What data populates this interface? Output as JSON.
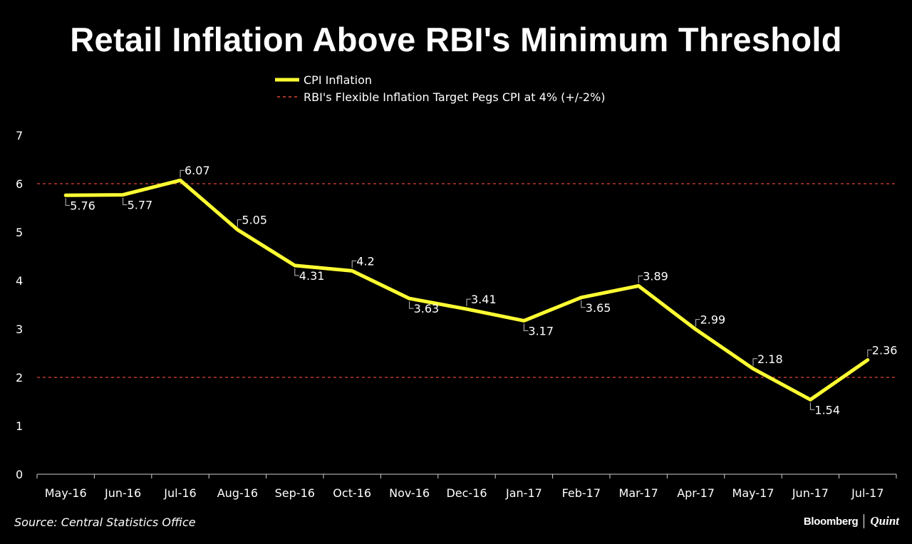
{
  "chart_data": {
    "type": "line",
    "title": "Retail Inflation Above RBI's Minimum Threshold",
    "categories": [
      "May-16",
      "Jun-16",
      "Jul-16",
      "Aug-16",
      "Sep-16",
      "Oct-16",
      "Nov-16",
      "Dec-16",
      "Jan-17",
      "Feb-17",
      "Mar-17",
      "Apr-17",
      "May-17",
      "Jun-17",
      "Jul-17"
    ],
    "series": [
      {
        "name": "CPI Inflation",
        "color": "#ffff33",
        "values": [
          5.76,
          5.77,
          6.07,
          5.05,
          4.31,
          4.2,
          3.63,
          3.41,
          3.17,
          3.65,
          3.89,
          2.99,
          2.18,
          1.54,
          2.36
        ]
      }
    ],
    "reference_lines": [
      {
        "name": "RBI's Flexible Inflation Target Pegs CPI at 4% (+/-2%)",
        "values": [
          2,
          6
        ],
        "color": "#e0453a",
        "style": "dashed"
      }
    ],
    "yticks": [
      0,
      1,
      2,
      3,
      4,
      5,
      6,
      7
    ],
    "ylim": [
      0,
      7
    ],
    "xlabel": "",
    "ylabel": "",
    "legend_position": "top-center",
    "grid": false
  },
  "footer": {
    "source": "Source: Central Statistics Office",
    "brand_primary": "Bloomberg",
    "brand_secondary": "Quint"
  }
}
